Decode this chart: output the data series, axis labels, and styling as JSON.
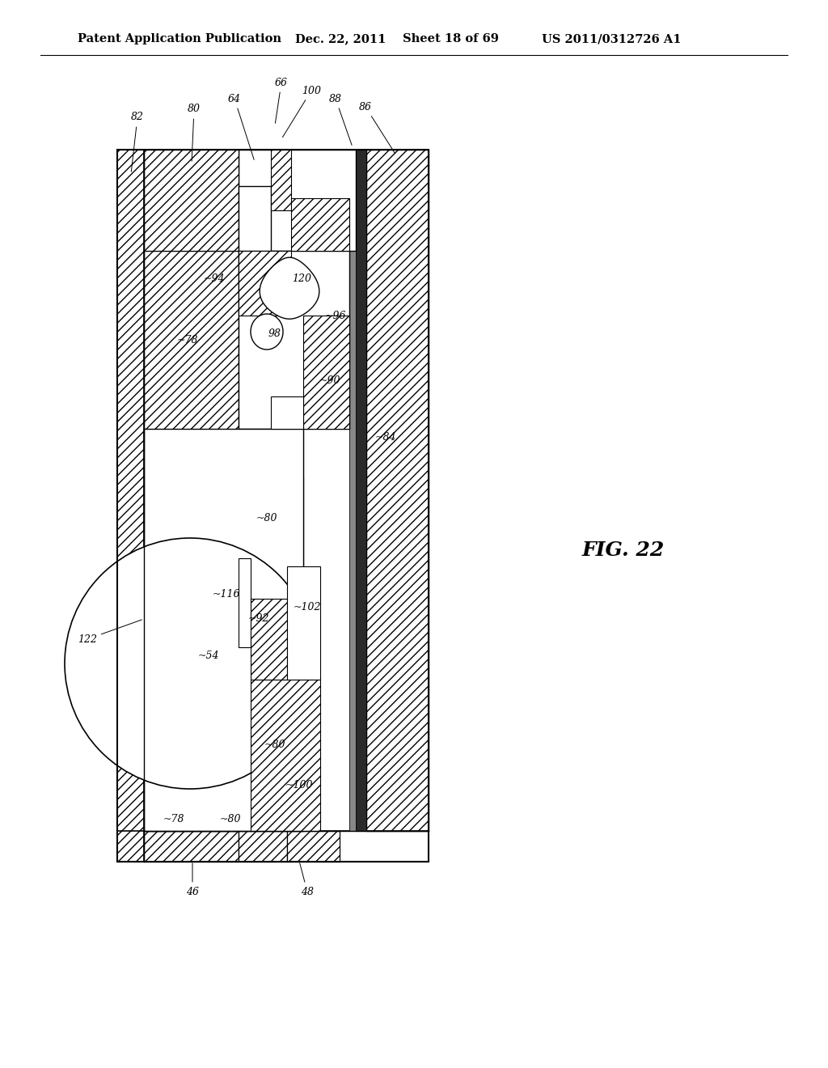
{
  "bg_color": "#ffffff",
  "header_text": "Patent Application Publication",
  "header_date": "Dec. 22, 2011",
  "header_sheet": "Sheet 18 of 69",
  "header_patent": "US 2011/0312726 A1",
  "fig_label": "FIG. 22",
  "title_fontsize": 10.5,
  "fig_label_fontsize": 18
}
